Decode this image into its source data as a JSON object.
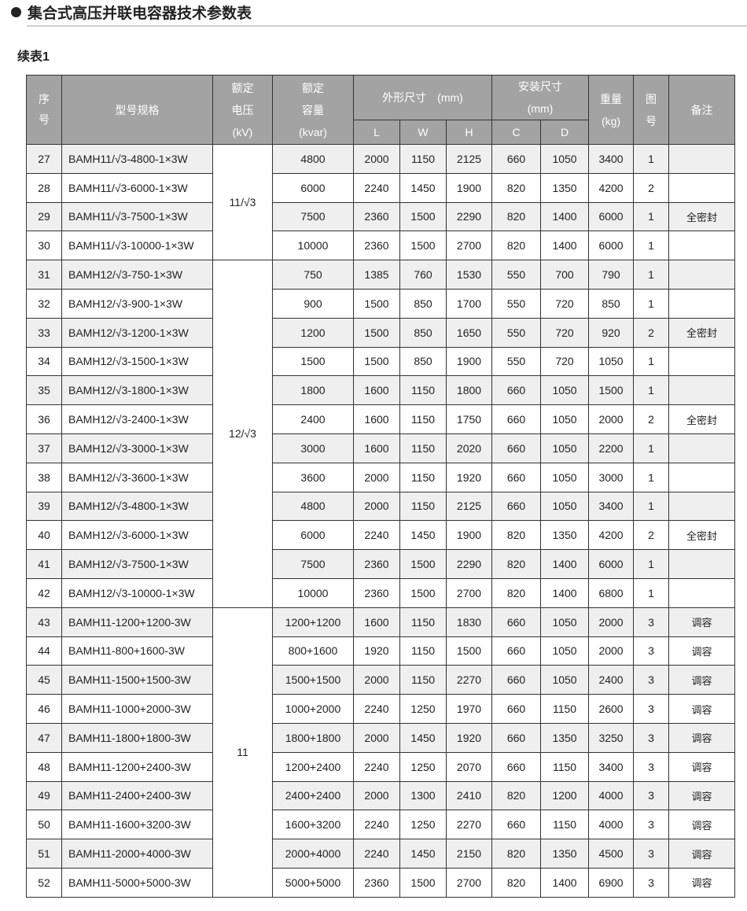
{
  "title": "集合式高压并联电容器技术参数表",
  "subtitle": "续表1",
  "headers": {
    "seq": "序号",
    "model": "型号规格",
    "voltage": [
      "额定",
      "电压",
      "(kV)"
    ],
    "capacity": [
      "额定",
      "容量",
      "(kvar)"
    ],
    "outline": "外形尺寸　(mm)",
    "install": [
      "安装尺寸",
      "(mm)"
    ],
    "weight": [
      "重量",
      "(kg)"
    ],
    "figure": [
      "图",
      "号"
    ],
    "remark": "备注",
    "L": "L",
    "W": "W",
    "H": "H",
    "C": "C",
    "D": "D"
  },
  "voltage_groups": [
    {
      "label": "11/√3",
      "rows": 4
    },
    {
      "label": "12/√3",
      "rows": 12
    },
    {
      "label": "11",
      "rows": 10
    }
  ],
  "rows": [
    [
      "27",
      "BAMH11/√3-4800-1×3W",
      "4800",
      "2000",
      "1150",
      "2125",
      "660",
      "1050",
      "3400",
      "1",
      ""
    ],
    [
      "28",
      "BAMH11/√3-6000-1×3W",
      "6000",
      "2240",
      "1450",
      "1900",
      "820",
      "1350",
      "4200",
      "2",
      ""
    ],
    [
      "29",
      "BAMH11/√3-7500-1×3W",
      "7500",
      "2360",
      "1500",
      "2290",
      "820",
      "1400",
      "6000",
      "1",
      "全密封"
    ],
    [
      "30",
      "BAMH11/√3-10000-1×3W",
      "10000",
      "2360",
      "1500",
      "2700",
      "820",
      "1400",
      "6000",
      "1",
      ""
    ],
    [
      "31",
      "BAMH12/√3-750-1×3W",
      "750",
      "1385",
      "760",
      "1530",
      "550",
      "700",
      "790",
      "1",
      ""
    ],
    [
      "32",
      "BAMH12/√3-900-1×3W",
      "900",
      "1500",
      "850",
      "1700",
      "550",
      "720",
      "850",
      "1",
      ""
    ],
    [
      "33",
      "BAMH12/√3-1200-1×3W",
      "1200",
      "1500",
      "850",
      "1650",
      "550",
      "720",
      "920",
      "2",
      "全密封"
    ],
    [
      "34",
      "BAMH12/√3-1500-1×3W",
      "1500",
      "1500",
      "850",
      "1900",
      "550",
      "720",
      "1050",
      "1",
      ""
    ],
    [
      "35",
      "BAMH12/√3-1800-1×3W",
      "1800",
      "1600",
      "1150",
      "1800",
      "660",
      "1050",
      "1500",
      "1",
      ""
    ],
    [
      "36",
      "BAMH12/√3-2400-1×3W",
      "2400",
      "1600",
      "1150",
      "1750",
      "660",
      "1050",
      "2000",
      "2",
      "全密封"
    ],
    [
      "37",
      "BAMH12/√3-3000-1×3W",
      "3000",
      "1600",
      "1150",
      "2020",
      "660",
      "1050",
      "2200",
      "1",
      ""
    ],
    [
      "38",
      "BAMH12/√3-3600-1×3W",
      "3600",
      "2000",
      "1150",
      "1920",
      "660",
      "1050",
      "3000",
      "1",
      ""
    ],
    [
      "39",
      "BAMH12/√3-4800-1×3W",
      "4800",
      "2000",
      "1150",
      "2125",
      "660",
      "1050",
      "3400",
      "1",
      ""
    ],
    [
      "40",
      "BAMH12/√3-6000-1×3W",
      "6000",
      "2240",
      "1450",
      "1900",
      "820",
      "1350",
      "4200",
      "2",
      "全密封"
    ],
    [
      "41",
      "BAMH12/√3-7500-1×3W",
      "7500",
      "2360",
      "1500",
      "2290",
      "820",
      "1400",
      "6000",
      "1",
      ""
    ],
    [
      "42",
      "BAMH12/√3-10000-1×3W",
      "10000",
      "2360",
      "1500",
      "2700",
      "820",
      "1400",
      "6800",
      "1",
      ""
    ],
    [
      "43",
      "BAMH11-1200+1200-3W",
      "1200+1200",
      "1600",
      "1150",
      "1830",
      "660",
      "1050",
      "2000",
      "3",
      "调容"
    ],
    [
      "44",
      "BAMH11-800+1600-3W",
      "800+1600",
      "1920",
      "1150",
      "1500",
      "660",
      "1050",
      "2000",
      "3",
      "调容"
    ],
    [
      "45",
      "BAMH11-1500+1500-3W",
      "1500+1500",
      "2000",
      "1150",
      "2270",
      "660",
      "1050",
      "2400",
      "3",
      "调容"
    ],
    [
      "46",
      "BAMH11-1000+2000-3W",
      "1000+2000",
      "2240",
      "1250",
      "1970",
      "660",
      "1150",
      "2600",
      "3",
      "调容"
    ],
    [
      "47",
      "BAMH11-1800+1800-3W",
      "1800+1800",
      "2000",
      "1450",
      "1920",
      "660",
      "1350",
      "3250",
      "3",
      "调容"
    ],
    [
      "48",
      "BAMH11-1200+2400-3W",
      "1200+2400",
      "2240",
      "1250",
      "2070",
      "660",
      "1150",
      "3400",
      "3",
      "调容"
    ],
    [
      "49",
      "BAMH11-2400+2400-3W",
      "2400+2400",
      "2000",
      "1300",
      "2410",
      "820",
      "1200",
      "4000",
      "3",
      "调容"
    ],
    [
      "50",
      "BAMH11-1600+3200-3W",
      "1600+3200",
      "2240",
      "1250",
      "2270",
      "660",
      "1150",
      "4000",
      "3",
      "调容"
    ],
    [
      "51",
      "BAMH11-2000+4000-3W",
      "2000+4000",
      "2240",
      "1450",
      "2150",
      "820",
      "1350",
      "4500",
      "3",
      "调容"
    ],
    [
      "52",
      "BAMH11-5000+5000-3W",
      "5000+5000",
      "2360",
      "1500",
      "2700",
      "820",
      "1400",
      "6900",
      "3",
      "调容"
    ]
  ]
}
